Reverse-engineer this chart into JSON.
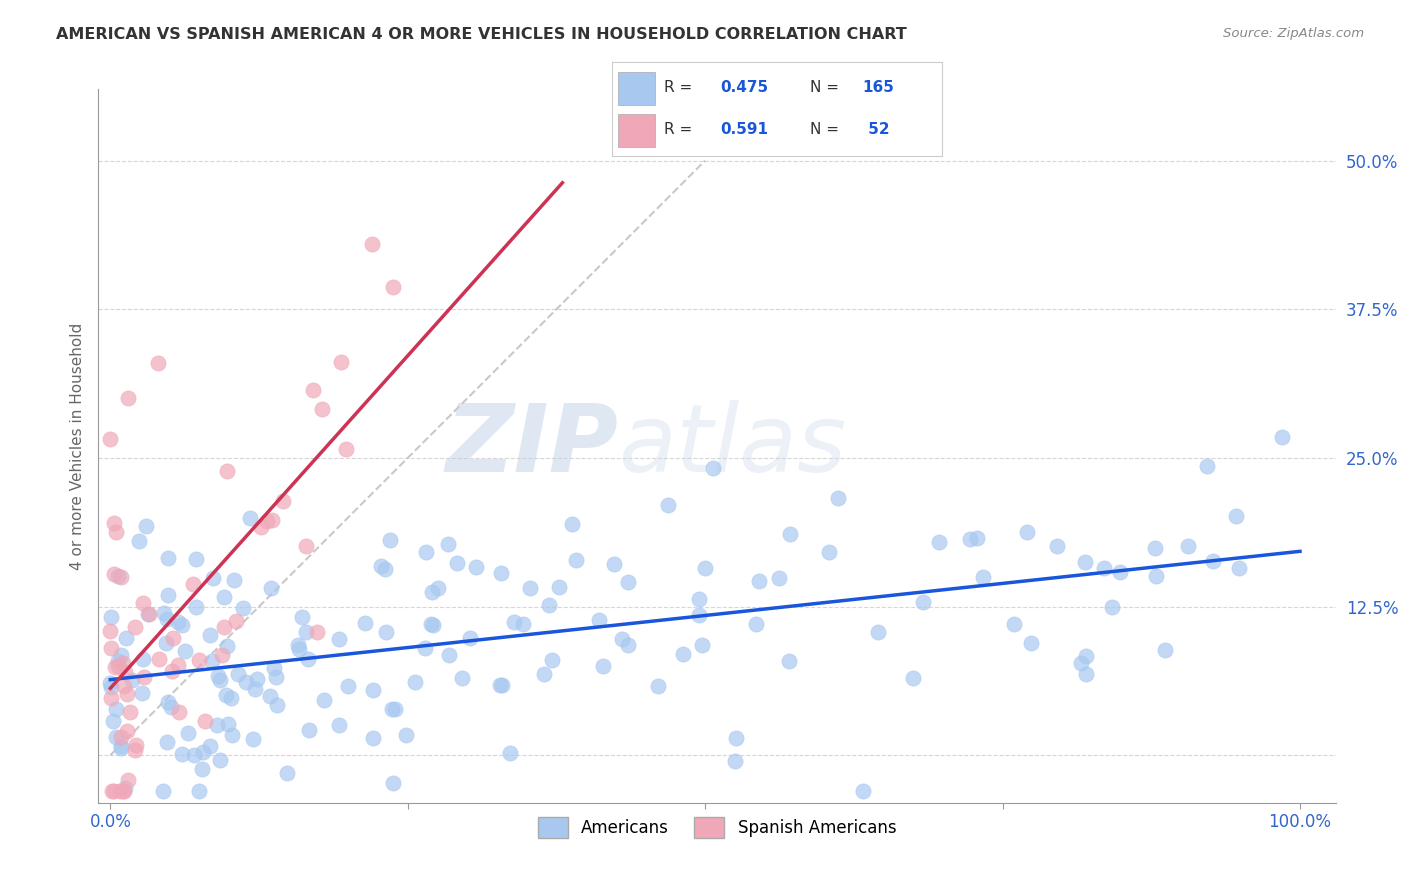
{
  "title": "AMERICAN VS SPANISH AMERICAN 4 OR MORE VEHICLES IN HOUSEHOLD CORRELATION CHART",
  "source": "Source: ZipAtlas.com",
  "ylabel": "4 or more Vehicles in Household",
  "legend_label_1": "Americans",
  "legend_label_2": "Spanish Americans",
  "R1": 0.475,
  "N1": 165,
  "R2": 0.591,
  "N2": 52,
  "color_blue": "#a8c8f0",
  "color_pink": "#f0a8b8",
  "line_blue": "#1a56db",
  "line_pink": "#cc3355",
  "line_dashed": "#bbbbbb",
  "background": "#ffffff",
  "watermark_zip": "ZIP",
  "watermark_atlas": "atlas",
  "xlim": [
    -0.01,
    1.03
  ],
  "ylim": [
    -0.04,
    0.56
  ]
}
